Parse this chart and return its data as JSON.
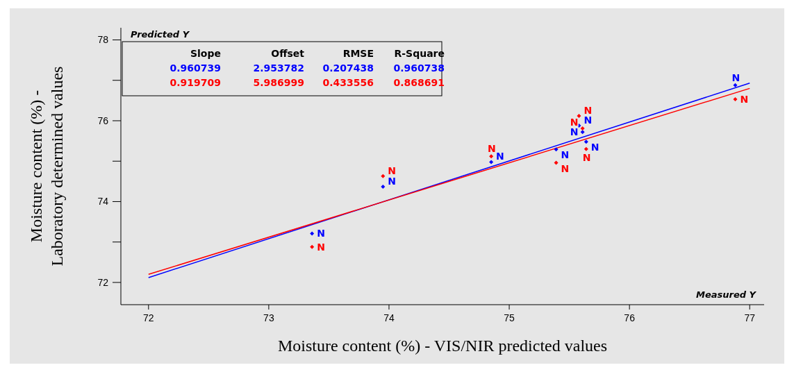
{
  "chart_data": {
    "type": "scatter",
    "xlabel": "Moisture content (%) - VIS/NIR predicted values",
    "ylabel": "Moisture content (%) -\nLaboratory determined values",
    "annotations": [
      "Predicted Y",
      "Measured Y",
      "Slope",
      "Offset",
      "RMSE",
      "R-Square",
      "0.960739",
      "2.953782",
      "0.207438",
      "0.960738",
      "0.919709",
      "5.986999",
      "0.433556",
      "0.868691"
    ],
    "xlim": [
      71.77,
      77.12
    ],
    "ylim": [
      71.45,
      78.3
    ],
    "xticks": [
      72,
      73,
      74,
      75,
      76,
      77
    ],
    "yticks": [
      72,
      {
        "value": 73,
        "label": null
      },
      74,
      {
        "value": 75,
        "label": null
      },
      76,
      {
        "value": 77,
        "label": null
      },
      78
    ],
    "grid": false,
    "marker": "diamond",
    "series": [
      {
        "color": "#0000ff",
        "x": [
          73.36,
          73.95,
          74.85,
          75.39,
          75.58,
          75.61,
          75.64,
          76.88
        ],
        "values": [
          73.21,
          74.37,
          74.98,
          75.29,
          75.88,
          75.72,
          75.48,
          76.88
        ],
        "value_labels": [
          "N",
          "N",
          "N",
          "N",
          "N",
          "N",
          "N",
          "N"
        ]
      },
      {
        "color": "#ff0000",
        "x": [
          73.36,
          73.95,
          74.85,
          75.39,
          75.58,
          75.61,
          75.64,
          76.88
        ],
        "values": [
          72.88,
          74.63,
          75.12,
          74.96,
          76.12,
          75.81,
          75.3,
          76.53
        ],
        "value_labels": [
          "N",
          "N",
          "N",
          "N",
          "N",
          "N",
          "N",
          "N"
        ]
      },
      {
        "type": "line",
        "color": "#0000ff",
        "marker": "none",
        "x": [
          72,
          77
        ],
        "values": [
          72.12,
          76.93
        ]
      },
      {
        "type": "line",
        "color": "#ff0000",
        "marker": "none",
        "x": [
          72,
          77
        ],
        "values": [
          72.2,
          76.8
        ]
      }
    ]
  }
}
